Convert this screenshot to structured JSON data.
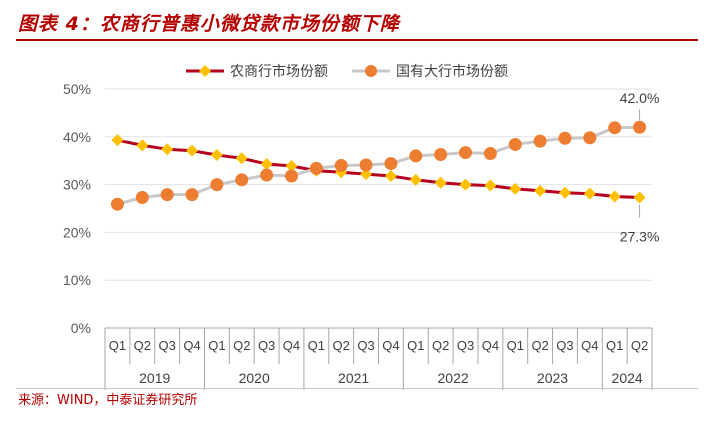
{
  "header": {
    "title": "图表 4：农商行普惠小微贷款市场份额下降"
  },
  "footer": {
    "source": "来源：WIND，中泰证券研究所"
  },
  "chart_data": {
    "type": "line",
    "years": [
      "2019",
      "2020",
      "2021",
      "2022",
      "2023",
      "2024"
    ],
    "quarters": [
      "Q1",
      "Q2",
      "Q3",
      "Q4",
      "Q1",
      "Q2",
      "Q3",
      "Q4",
      "Q1",
      "Q2",
      "Q3",
      "Q4",
      "Q1",
      "Q2",
      "Q3",
      "Q4",
      "Q1",
      "Q2",
      "Q3",
      "Q4",
      "Q1",
      "Q2"
    ],
    "year_quarter_counts": [
      4,
      4,
      4,
      4,
      4,
      2
    ],
    "ylim": [
      0,
      50
    ],
    "yticks": [
      "0%",
      "10%",
      "20%",
      "30%",
      "40%",
      "50%"
    ],
    "ytick_values": [
      0,
      10,
      20,
      30,
      40,
      50
    ],
    "legend_position": "top",
    "series": [
      {
        "name": "农商行市场份额",
        "color": "#b4001e",
        "marker_color": "#ffc000",
        "marker": "diamond",
        "values": [
          39.3,
          38.2,
          37.4,
          37.1,
          36.2,
          35.5,
          34.3,
          33.9,
          32.9,
          32.6,
          32.2,
          31.8,
          31.0,
          30.4,
          30.0,
          29.8,
          29.1,
          28.7,
          28.3,
          28.1,
          27.5,
          27.3
        ],
        "end_label": "27.3%"
      },
      {
        "name": "国有大行市场份额",
        "color": "#c8c8c8",
        "marker_color": "#ed7d31",
        "marker": "circle",
        "values": [
          25.9,
          27.3,
          27.9,
          27.9,
          30.0,
          31.0,
          32.0,
          31.8,
          33.4,
          34.0,
          34.1,
          34.4,
          36.0,
          36.3,
          36.7,
          36.5,
          38.4,
          39.1,
          39.7,
          39.8,
          41.9,
          42.0
        ],
        "end_label": "42.0%"
      }
    ]
  }
}
